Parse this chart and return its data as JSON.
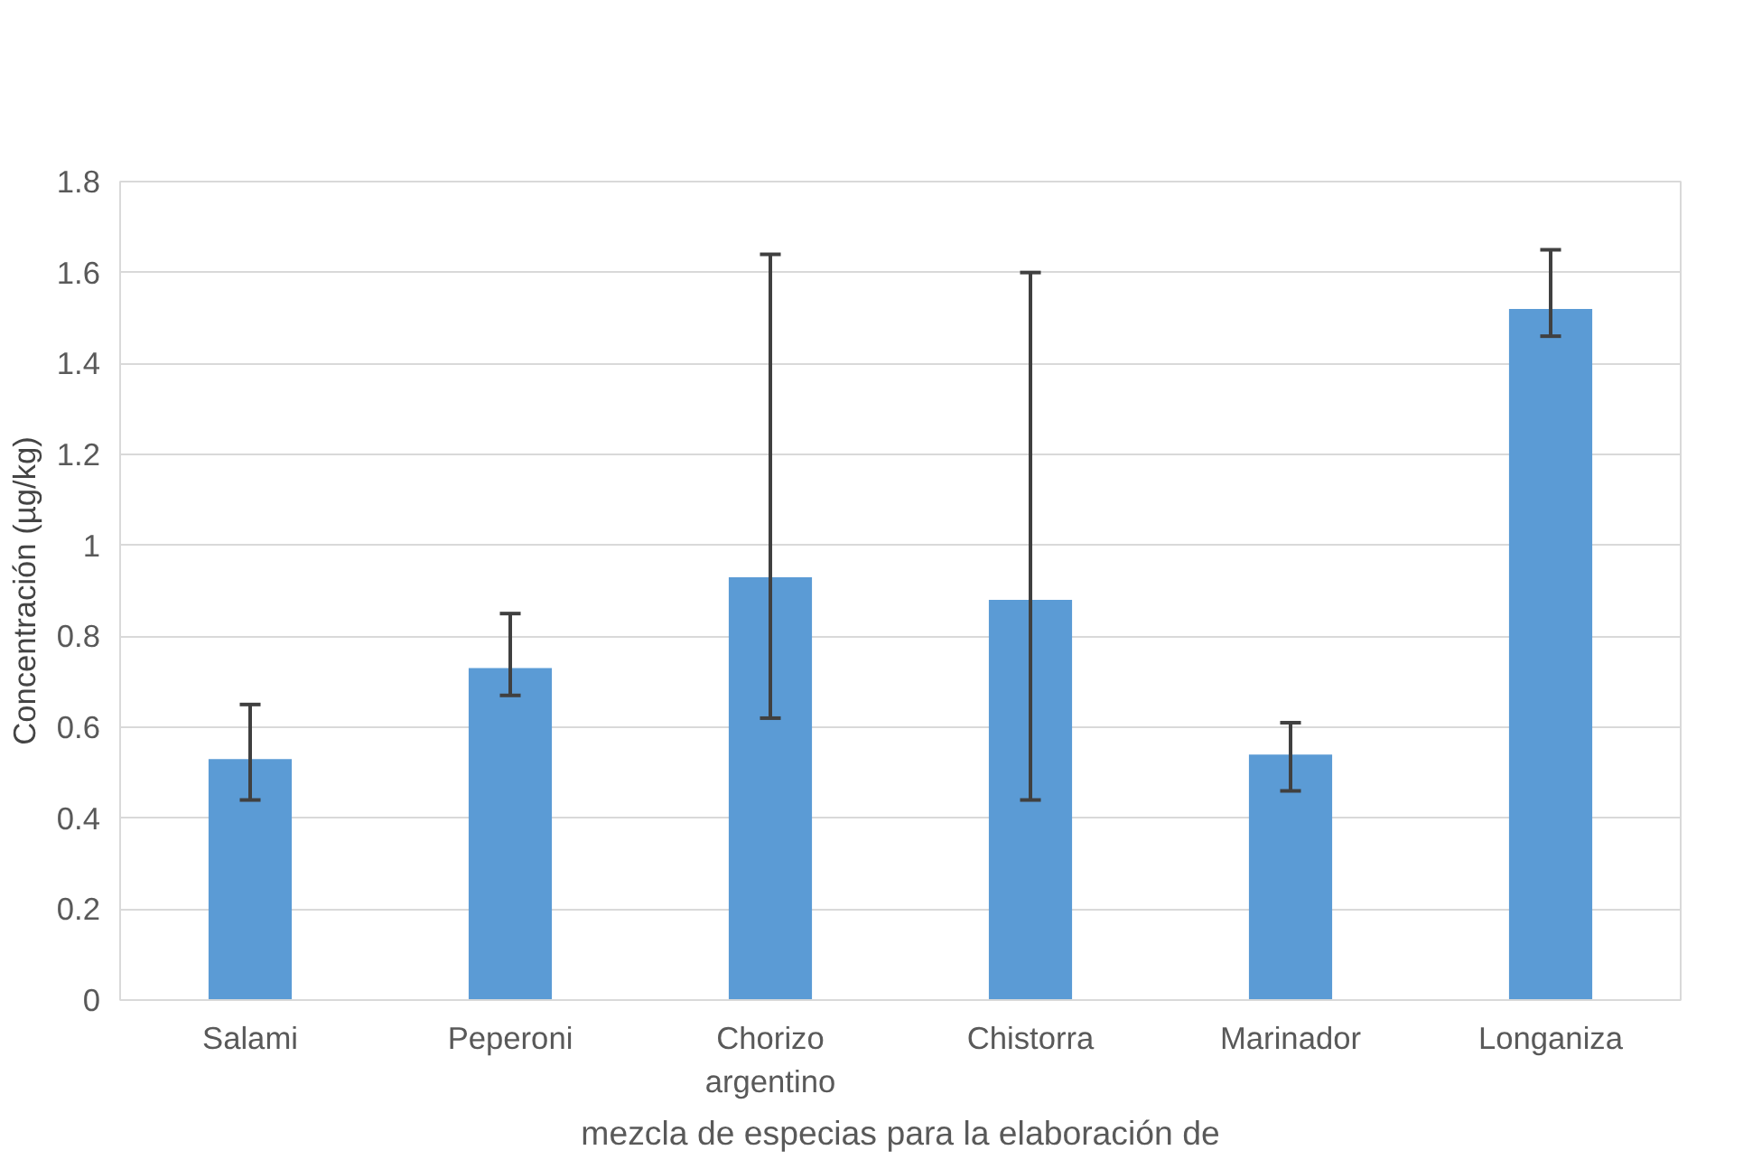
{
  "chart_data": {
    "type": "bar",
    "xlabel": "mezcla de especias para la elaboración de",
    "ylabel": "Concentración (µg/kg)",
    "categories": [
      "Salami",
      "Peperoni",
      "Chorizo argentino",
      "Chistorra",
      "Marinador",
      "Longaniza"
    ],
    "values": [
      0.53,
      0.73,
      0.93,
      0.88,
      0.54,
      1.52
    ],
    "errors": [
      [
        0.44,
        0.65
      ],
      [
        0.67,
        0.85
      ],
      [
        0.62,
        1.64
      ],
      [
        0.44,
        1.6
      ],
      [
        0.46,
        0.61
      ],
      [
        1.46,
        1.65
      ]
    ],
    "color": "#5b9bd5",
    "ylim": [
      0,
      1.8
    ],
    "yticks": [
      0,
      0.2,
      0.4,
      0.6,
      0.8,
      1,
      1.2,
      1.4,
      1.6,
      1.8
    ],
    "grid": "y"
  }
}
